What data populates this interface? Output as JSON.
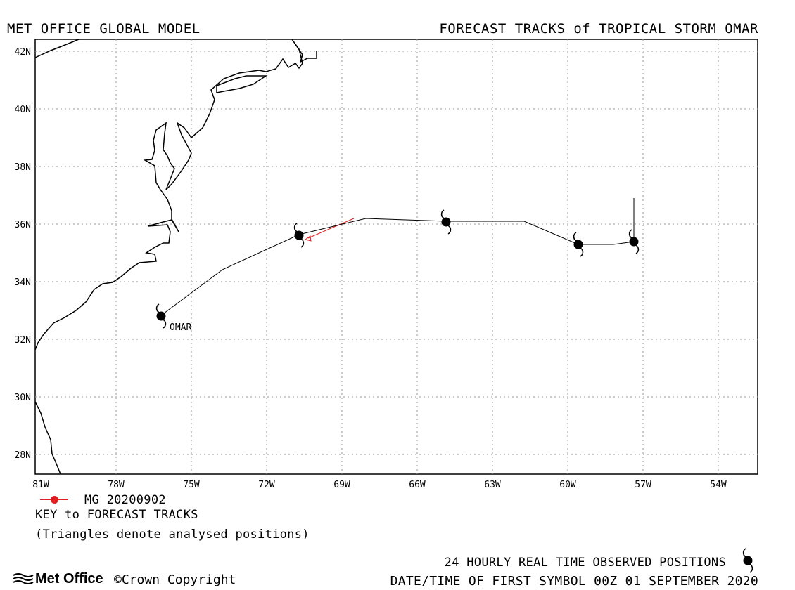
{
  "header": {
    "title_left": "MET OFFICE GLOBAL MODEL",
    "title_right": "FORECAST TRACKS of TROPICAL STORM OMAR"
  },
  "map": {
    "lat_labels": [
      "42N",
      "40N",
      "38N",
      "36N",
      "34N",
      "32N",
      "30N",
      "28N"
    ],
    "lon_labels": [
      "81W",
      "78W",
      "75W",
      "72W",
      "69W",
      "66W",
      "63W",
      "60W",
      "57W",
      "54W"
    ],
    "storm_label": "OMAR",
    "colors": {
      "observed_track": "#000000",
      "forecast_track": "#e02020",
      "frame": "#000000",
      "grid": "#9a9a9a"
    },
    "observed_positions": [
      {
        "lat": 32.8,
        "lon": -75.8
      },
      {
        "lat": 35.6,
        "lon": -70.3
      },
      {
        "lat": 36.1,
        "lon": -64.4
      },
      {
        "lat": 35.3,
        "lon": -59.1
      },
      {
        "lat": 35.4,
        "lon": -56.9
      }
    ]
  },
  "legend": {
    "run_label": "MG 20200902",
    "key_title": "KEY to FORECAST TRACKS",
    "key_note": "(Triangles denote analysed positions)",
    "observed_note": "24 HOURLY REAL TIME OBSERVED POSITIONS",
    "first_symbol_note": "DATE/TIME OF FIRST SYMBOL 00Z 01 SEPTEMBER 2020"
  },
  "footer": {
    "brand": "Met Office",
    "copyright": "Crown Copyright",
    "copyright_symbol": "©"
  }
}
